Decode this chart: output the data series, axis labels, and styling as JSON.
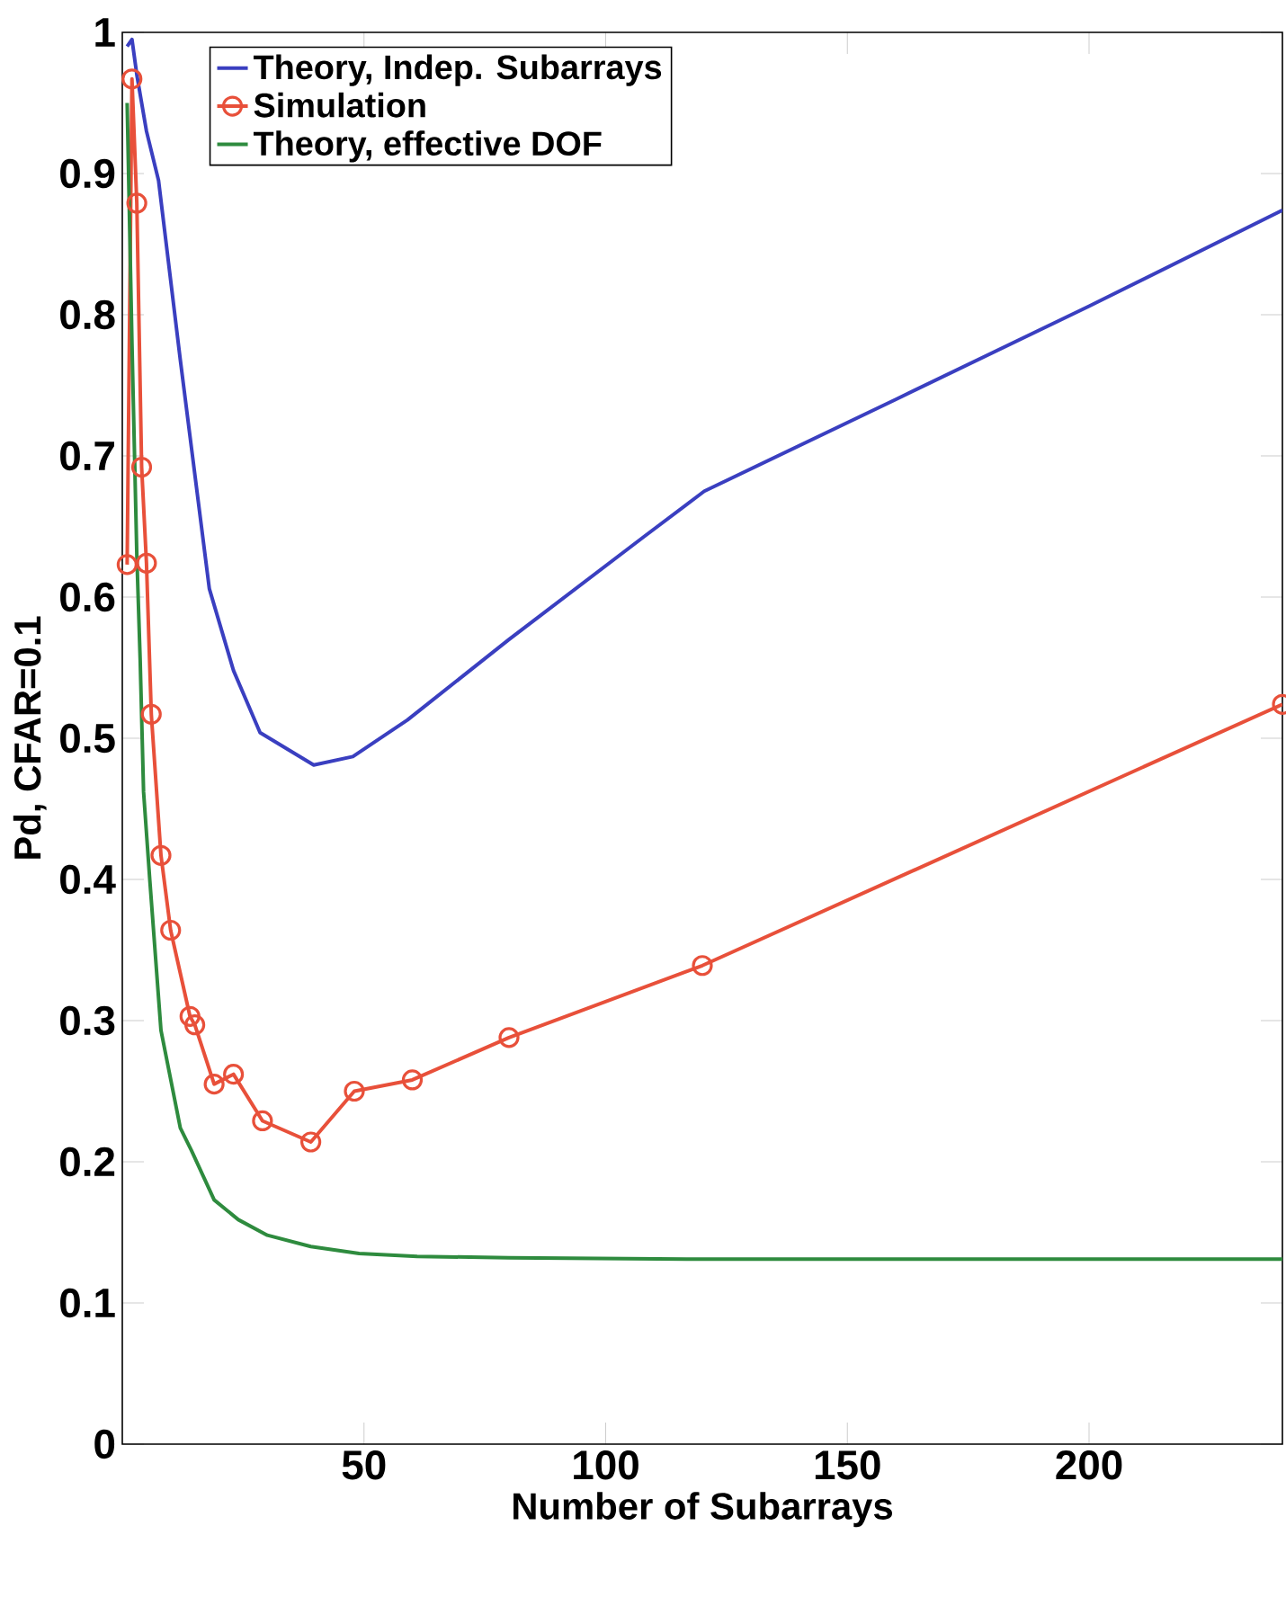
{
  "chart_data": {
    "type": "line",
    "xlabel": "Number of Subarrays",
    "ylabel": "Pd, CFAR=0.1",
    "xlim": [
      0,
      240
    ],
    "ylim": [
      0,
      1
    ],
    "xticks": [
      50,
      100,
      150,
      200
    ],
    "yticks": [
      0,
      0.1,
      0.2,
      0.3,
      0.4,
      0.5,
      0.6,
      0.7,
      0.8,
      0.9,
      1
    ],
    "legend": "top left",
    "series": [
      {
        "name": "Theory, Indep. Subarrays",
        "color": "#3a3fc0",
        "marker": "none",
        "x": [
          1,
          2,
          3,
          5,
          7.5,
          12,
          18,
          23,
          28.5,
          39.6,
          47.7,
          59,
          80,
          108,
          120.4,
          160,
          200,
          240
        ],
        "values": [
          0.99,
          0.995,
          0.97,
          0.93,
          0.895,
          0.768,
          0.606,
          0.548,
          0.504,
          0.481,
          0.487,
          0.513,
          0.57,
          0.643,
          0.675,
          0.74,
          0.806,
          0.874
        ]
      },
      {
        "name": "Simulation",
        "color": "#e8503a",
        "marker": "circle",
        "x": [
          1,
          2,
          3,
          4,
          5,
          6,
          8,
          10,
          14,
          15,
          19,
          23,
          29,
          39,
          48,
          60,
          80,
          120,
          240
        ],
        "values": [
          0.623,
          0.967,
          0.879,
          0.692,
          0.624,
          0.517,
          0.417,
          0.364,
          0.303,
          0.297,
          0.255,
          0.262,
          0.229,
          0.214,
          0.25,
          0.258,
          0.288,
          0.339,
          0.524
        ]
      },
      {
        "name": "Theory, effective DOF",
        "color": "#2e8b3e",
        "marker": "none",
        "x": [
          1,
          2,
          3,
          3.7,
          4.4,
          5.7,
          8,
          12,
          14.3,
          19,
          24,
          30,
          39,
          49,
          61,
          80,
          120,
          180,
          240
        ],
        "values": [
          0.95,
          0.78,
          0.63,
          0.555,
          0.462,
          0.399,
          0.293,
          0.224,
          0.208,
          0.173,
          0.159,
          0.148,
          0.14,
          0.135,
          0.133,
          0.132,
          0.131,
          0.131,
          0.131
        ]
      }
    ]
  }
}
